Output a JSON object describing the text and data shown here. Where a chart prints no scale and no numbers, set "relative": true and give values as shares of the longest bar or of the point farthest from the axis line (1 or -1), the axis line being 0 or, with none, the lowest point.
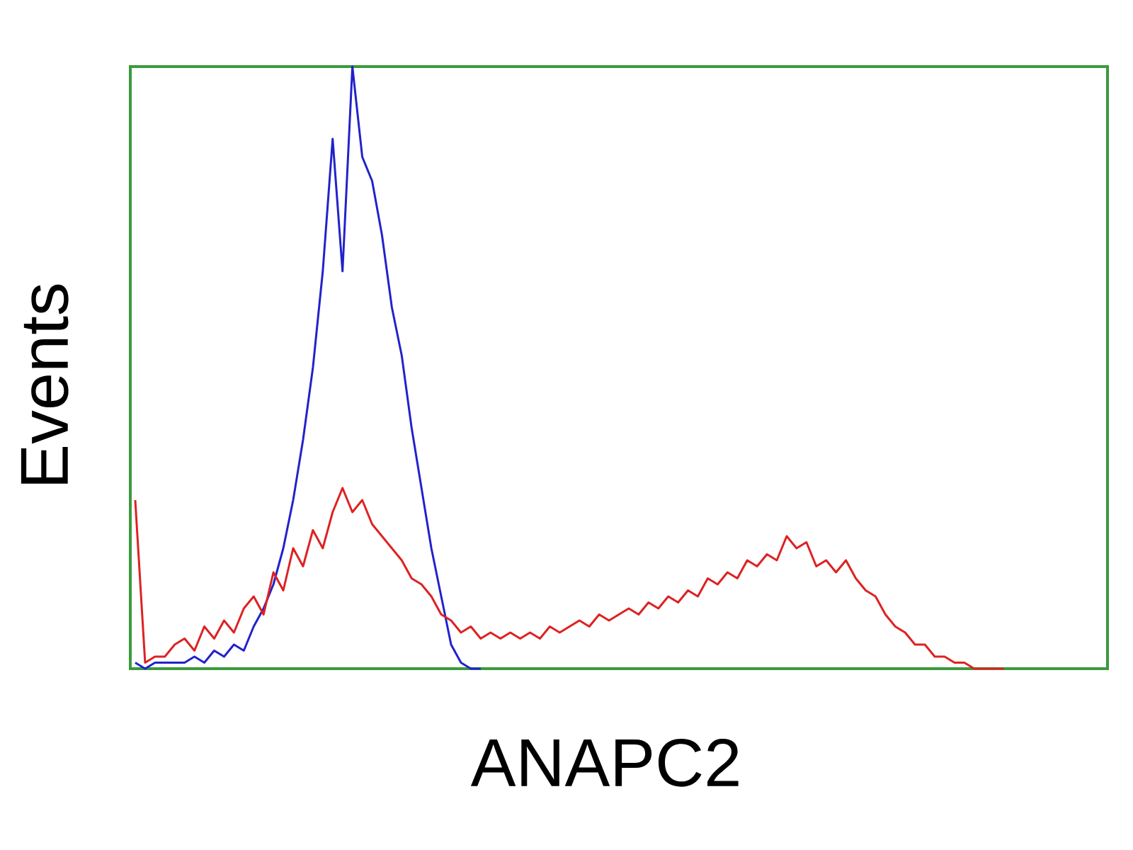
{
  "chart_data": {
    "type": "line",
    "xlabel": "ANAPC2",
    "ylabel": "Events",
    "relative": true,
    "categories": [
      null,
      null,
      null,
      null,
      null,
      null,
      null,
      null,
      null,
      null,
      null,
      null,
      null,
      null,
      null,
      null,
      null,
      null,
      null,
      null,
      null,
      null,
      null,
      null,
      null,
      null,
      null,
      null,
      null,
      null,
      null,
      null,
      null,
      null,
      null,
      null,
      null,
      null,
      null,
      null,
      null,
      null,
      null,
      null,
      null,
      null,
      null,
      null,
      null,
      null,
      null,
      null,
      null,
      null,
      null,
      null,
      null,
      null,
      null,
      null,
      null,
      null,
      null,
      null,
      null,
      null,
      null,
      null,
      null,
      null,
      null,
      null,
      null,
      null,
      null,
      null,
      null,
      null,
      null,
      null,
      null,
      null,
      null,
      null,
      null,
      null,
      null,
      null,
      null,
      null,
      null,
      null,
      null,
      null,
      null,
      null,
      null,
      null,
      null
    ],
    "series": [
      {
        "color": "#2222cc",
        "values": [
          0.01,
          0.0,
          0.01,
          0.01,
          0.01,
          0.01,
          0.02,
          0.01,
          0.03,
          0.02,
          0.04,
          0.03,
          0.07,
          0.1,
          0.14,
          0.2,
          0.28,
          0.38,
          0.5,
          0.66,
          0.88,
          0.66,
          1.0,
          0.85,
          0.81,
          0.72,
          0.6,
          0.52,
          0.4,
          0.3,
          0.2,
          0.12,
          0.04,
          0.01,
          0.0,
          0.0,
          null,
          null,
          null,
          null,
          null,
          null,
          null,
          null,
          null,
          null,
          null,
          null,
          null,
          null,
          null,
          null,
          null,
          null,
          null,
          null,
          null,
          null,
          null,
          null,
          null,
          null,
          null,
          null,
          null,
          null,
          null,
          null,
          null,
          null,
          null,
          null,
          null,
          null,
          null,
          null,
          null,
          null,
          null,
          null,
          null,
          null,
          null,
          null,
          null,
          null,
          null,
          null,
          null,
          null,
          null,
          null,
          null,
          null,
          null,
          null,
          null,
          null,
          null
        ]
      },
      {
        "color": "#dd2222",
        "values": [
          0.28,
          0.01,
          0.02,
          0.02,
          0.04,
          0.05,
          0.03,
          0.07,
          0.05,
          0.08,
          0.06,
          0.1,
          0.12,
          0.09,
          0.16,
          0.13,
          0.2,
          0.17,
          0.23,
          0.2,
          0.26,
          0.3,
          0.26,
          0.28,
          0.24,
          0.22,
          0.2,
          0.18,
          0.15,
          0.14,
          0.12,
          0.09,
          0.08,
          0.06,
          0.07,
          0.05,
          0.06,
          0.05,
          0.06,
          0.05,
          0.06,
          0.05,
          0.07,
          0.06,
          0.07,
          0.08,
          0.07,
          0.09,
          0.08,
          0.09,
          0.1,
          0.09,
          0.11,
          0.1,
          0.12,
          0.11,
          0.13,
          0.12,
          0.15,
          0.14,
          0.16,
          0.15,
          0.18,
          0.17,
          0.19,
          0.18,
          0.22,
          0.2,
          0.21,
          0.17,
          0.18,
          0.16,
          0.18,
          0.15,
          0.13,
          0.12,
          0.09,
          0.07,
          0.06,
          0.04,
          0.04,
          0.02,
          0.02,
          0.01,
          0.01,
          0.0,
          0.0,
          0.0,
          0.0,
          null,
          null,
          null,
          null,
          null,
          null,
          null,
          null,
          null,
          null
        ]
      }
    ]
  }
}
